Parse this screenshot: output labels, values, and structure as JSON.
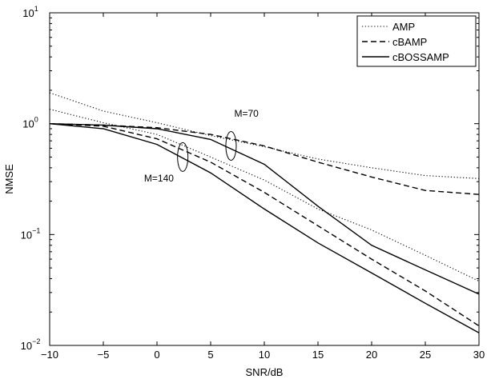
{
  "chart_data": {
    "type": "line",
    "xlabel": "SNR/dB",
    "ylabel": "NMSE",
    "xlim": [
      -10,
      30
    ],
    "ylim": [
      0.01,
      10
    ],
    "yscale": "log",
    "x_ticks": [
      -10,
      -5,
      0,
      5,
      10,
      15,
      20,
      25,
      30
    ],
    "x_tick_labels": [
      "−10",
      "−5",
      "0",
      "5",
      "10",
      "15",
      "20",
      "25",
      "30"
    ],
    "y_ticks": [
      0.01,
      0.1,
      1,
      10
    ],
    "y_tick_labels": [
      {
        "base": "10",
        "exp": "−2"
      },
      {
        "base": "10",
        "exp": "−1"
      },
      {
        "base": "10",
        "exp": "0"
      },
      {
        "base": "10",
        "exp": "1"
      }
    ],
    "grid": false,
    "legend_position": "top-right",
    "series": [
      {
        "name": "AMP",
        "style": "dotted",
        "group": "M=70",
        "x": [
          -10,
          -5,
          0,
          5,
          10,
          15,
          20,
          25,
          30
        ],
        "y": [
          1.9,
          1.3,
          1.02,
          0.78,
          0.62,
          0.48,
          0.4,
          0.34,
          0.32
        ]
      },
      {
        "name": "cBAMP",
        "style": "dashed",
        "group": "M=70",
        "x": [
          -10,
          -5,
          0,
          5,
          10,
          15,
          20,
          25,
          30
        ],
        "y": [
          1.0,
          0.97,
          0.92,
          0.8,
          0.63,
          0.45,
          0.33,
          0.25,
          0.23
        ]
      },
      {
        "name": "cBOSSAMP",
        "style": "solid",
        "group": "M=70",
        "x": [
          -10,
          -5,
          0,
          5,
          10,
          15,
          20,
          25,
          30
        ],
        "y": [
          1.0,
          0.97,
          0.9,
          0.72,
          0.43,
          0.18,
          0.08,
          0.048,
          0.029
        ]
      },
      {
        "name": "AMP",
        "style": "dotted",
        "group": "M=140",
        "x": [
          -10,
          -5,
          0,
          5,
          10,
          15,
          20,
          25,
          30
        ],
        "y": [
          1.35,
          1.02,
          0.8,
          0.5,
          0.31,
          0.17,
          0.11,
          0.065,
          0.038
        ]
      },
      {
        "name": "cBAMP",
        "style": "dashed",
        "group": "M=140",
        "x": [
          -10,
          -5,
          0,
          5,
          10,
          15,
          20,
          25,
          30
        ],
        "y": [
          1.0,
          0.95,
          0.73,
          0.45,
          0.24,
          0.12,
          0.06,
          0.031,
          0.015
        ]
      },
      {
        "name": "cBOSSAMP",
        "style": "solid",
        "group": "M=140",
        "x": [
          -10,
          -5,
          0,
          5,
          10,
          15,
          20,
          25,
          30
        ],
        "y": [
          1.0,
          0.9,
          0.65,
          0.36,
          0.17,
          0.084,
          0.045,
          0.024,
          0.013
        ]
      }
    ],
    "legend": [
      "AMP",
      "cBAMP",
      "cBOSSAMP"
    ],
    "annotations": [
      {
        "text": "M=70",
        "x": 6.9,
        "y": 0.63,
        "label_x": 7.2,
        "label_y": 1.15
      },
      {
        "text": "M=140",
        "x": 2.4,
        "y": 0.5,
        "label_x": -1.2,
        "label_y": 0.3
      }
    ]
  }
}
